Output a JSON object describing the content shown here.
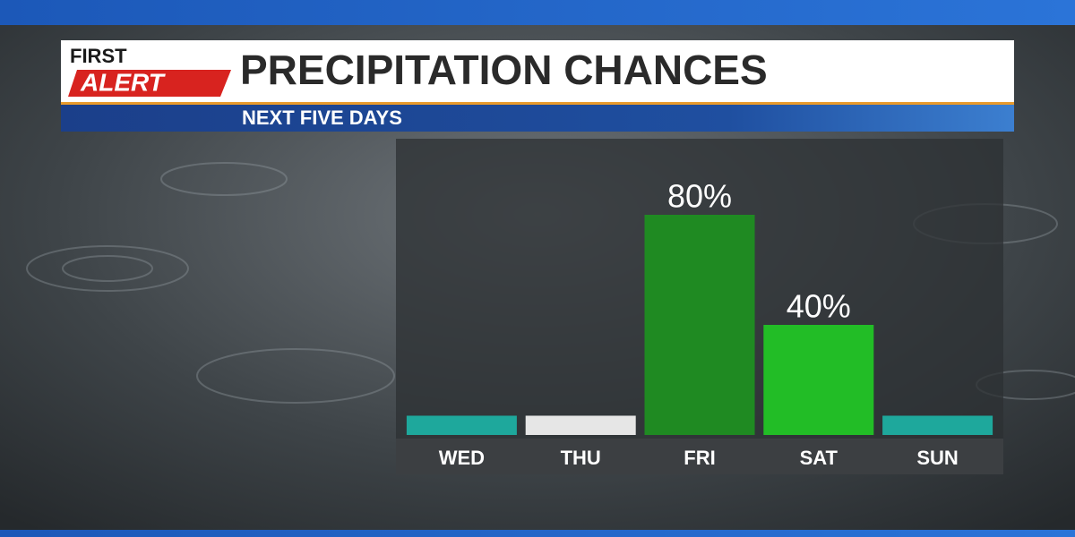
{
  "chart_data": {
    "type": "bar",
    "brand": [
      "FIRST",
      "ALERT"
    ],
    "title": "PRECIPITATION CHANCES",
    "subtitle": "NEXT FIVE DAYS",
    "categories": [
      "WED",
      "THU",
      "FRI",
      "SAT",
      "SUN"
    ],
    "values": [
      7,
      7,
      80,
      40,
      7
    ],
    "value_labels": [
      null,
      null,
      "80%",
      "40%",
      null
    ],
    "colors": [
      "#1ea89c",
      "#e6e6e6",
      "#1f8a22",
      "#22bd26",
      "#1ea89c"
    ],
    "ylim": [
      0,
      100
    ]
  }
}
